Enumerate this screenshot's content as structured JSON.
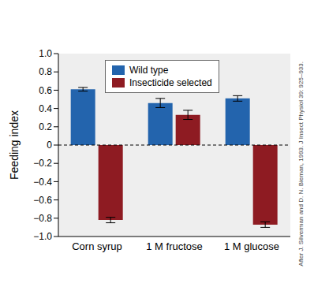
{
  "chart_data": {
    "type": "bar",
    "categories": [
      "Corn syrup",
      "1 M fructose",
      "1 M glucose"
    ],
    "series": [
      {
        "name": "Wild type",
        "color": "#2364ad",
        "values": [
          0.61,
          0.46,
          0.51
        ],
        "errors": [
          0.02,
          0.05,
          0.03
        ]
      },
      {
        "name": "Insecticide selected",
        "color": "#8e1b22",
        "values": [
          -0.82,
          0.33,
          -0.87
        ],
        "errors": [
          0.03,
          0.05,
          0.03
        ]
      }
    ],
    "y_label": "Feeding index",
    "ylim": [
      -1,
      1
    ],
    "yticks": [
      {
        "value": 1,
        "label": "1.0"
      },
      0.8,
      0.6,
      0.4,
      0.2,
      0,
      {
        "value": -0.2,
        "label": "−0.2"
      },
      {
        "value": -0.4,
        "label": "−0.4"
      },
      {
        "value": -0.6,
        "label": "−0.6"
      },
      {
        "value": -0.8,
        "label": "−0.8"
      },
      {
        "value": -1,
        "label": "−1.0"
      }
    ],
    "grid": false,
    "legend": "upper center",
    "annotations": [
      "After J. Silverman and D. N. Bieman, 1993. J Insect Physiol 39: 925–933."
    ]
  }
}
